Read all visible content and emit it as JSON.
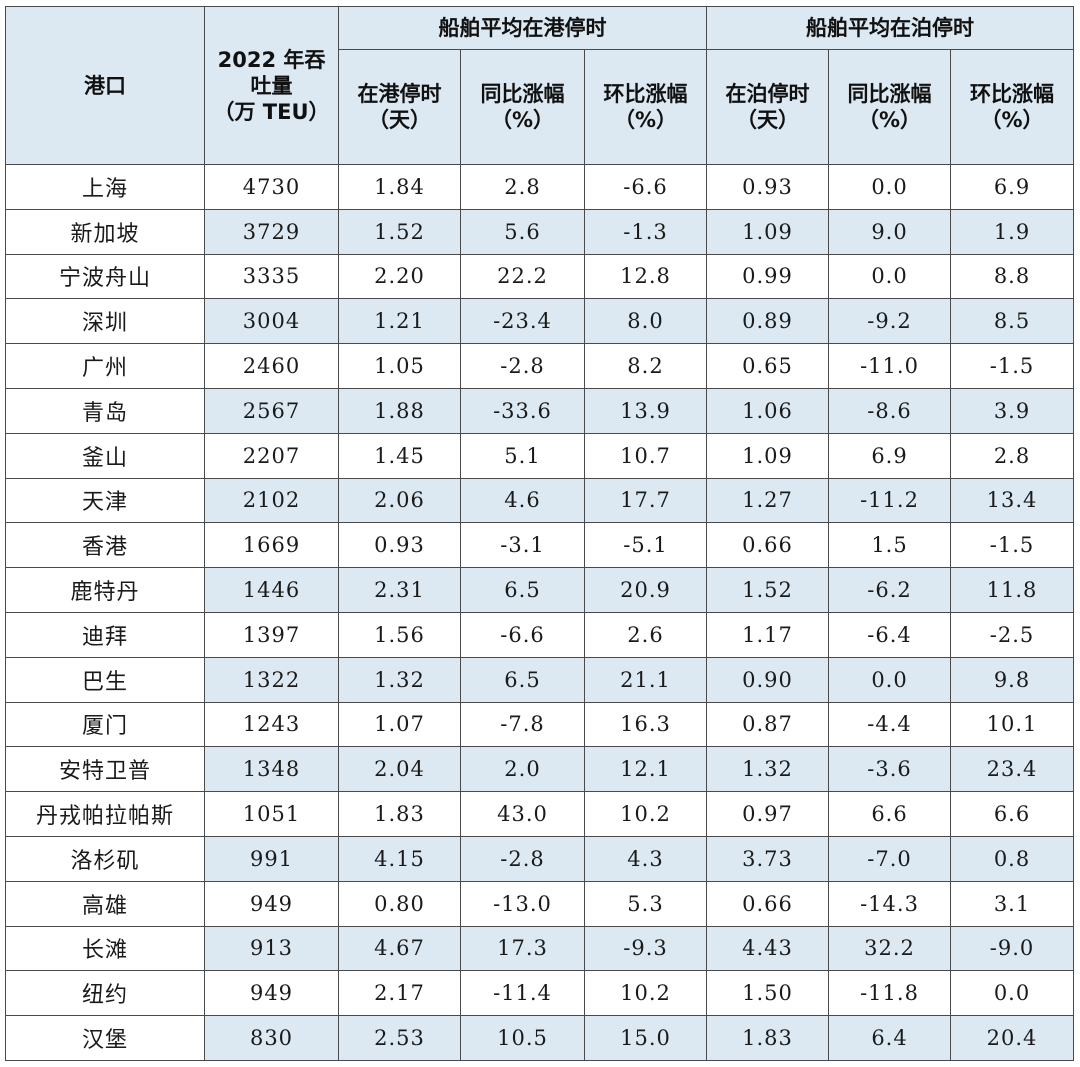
{
  "headers": {
    "port": "港口",
    "throughput": [
      "2022 年吞",
      "吐量",
      "（万 TEU）"
    ],
    "group_port": "船舶平均在港停时",
    "group_berth": "船舶平均在泊停时",
    "port_time": [
      "在港停时",
      "（天）"
    ],
    "yoy": [
      "同比涨幅",
      "（%）"
    ],
    "mom": [
      "环比涨幅",
      "（%）"
    ],
    "berth_time": [
      "在泊停时",
      "（天）"
    ]
  },
  "rows": [
    {
      "port": "上海",
      "teu": "4730",
      "port_days": "1.84",
      "port_yoy": "2.8",
      "port_mom": "-6.6",
      "berth_days": "0.93",
      "berth_yoy": "0.0",
      "berth_mom": "6.9"
    },
    {
      "port": "新加坡",
      "teu": "3729",
      "port_days": "1.52",
      "port_yoy": "5.6",
      "port_mom": "-1.3",
      "berth_days": "1.09",
      "berth_yoy": "9.0",
      "berth_mom": "1.9"
    },
    {
      "port": "宁波舟山",
      "teu": "3335",
      "port_days": "2.20",
      "port_yoy": "22.2",
      "port_mom": "12.8",
      "berth_days": "0.99",
      "berth_yoy": "0.0",
      "berth_mom": "8.8"
    },
    {
      "port": "深圳",
      "teu": "3004",
      "port_days": "1.21",
      "port_yoy": "-23.4",
      "port_mom": "8.0",
      "berth_days": "0.89",
      "berth_yoy": "-9.2",
      "berth_mom": "8.5"
    },
    {
      "port": "广州",
      "teu": "2460",
      "port_days": "1.05",
      "port_yoy": "-2.8",
      "port_mom": "8.2",
      "berth_days": "0.65",
      "berth_yoy": "-11.0",
      "berth_mom": "-1.5"
    },
    {
      "port": "青岛",
      "teu": "2567",
      "port_days": "1.88",
      "port_yoy": "-33.6",
      "port_mom": "13.9",
      "berth_days": "1.06",
      "berth_yoy": "-8.6",
      "berth_mom": "3.9"
    },
    {
      "port": "釜山",
      "teu": "2207",
      "port_days": "1.45",
      "port_yoy": "5.1",
      "port_mom": "10.7",
      "berth_days": "1.09",
      "berth_yoy": "6.9",
      "berth_mom": "2.8"
    },
    {
      "port": "天津",
      "teu": "2102",
      "port_days": "2.06",
      "port_yoy": "4.6",
      "port_mom": "17.7",
      "berth_days": "1.27",
      "berth_yoy": "-11.2",
      "berth_mom": "13.4"
    },
    {
      "port": "香港",
      "teu": "1669",
      "port_days": "0.93",
      "port_yoy": "-3.1",
      "port_mom": "-5.1",
      "berth_days": "0.66",
      "berth_yoy": "1.5",
      "berth_mom": "-1.5"
    },
    {
      "port": "鹿特丹",
      "teu": "1446",
      "port_days": "2.31",
      "port_yoy": "6.5",
      "port_mom": "20.9",
      "berth_days": "1.52",
      "berth_yoy": "-6.2",
      "berth_mom": "11.8"
    },
    {
      "port": "迪拜",
      "teu": "1397",
      "port_days": "1.56",
      "port_yoy": "-6.6",
      "port_mom": "2.6",
      "berth_days": "1.17",
      "berth_yoy": "-6.4",
      "berth_mom": "-2.5"
    },
    {
      "port": "巴生",
      "teu": "1322",
      "port_days": "1.32",
      "port_yoy": "6.5",
      "port_mom": "21.1",
      "berth_days": "0.90",
      "berth_yoy": "0.0",
      "berth_mom": "9.8"
    },
    {
      "port": "厦门",
      "teu": "1243",
      "port_days": "1.07",
      "port_yoy": "-7.8",
      "port_mom": "16.3",
      "berth_days": "0.87",
      "berth_yoy": "-4.4",
      "berth_mom": "10.1"
    },
    {
      "port": "安特卫普",
      "teu": "1348",
      "port_days": "2.04",
      "port_yoy": "2.0",
      "port_mom": "12.1",
      "berth_days": "1.32",
      "berth_yoy": "-3.6",
      "berth_mom": "23.4"
    },
    {
      "port": "丹戎帕拉帕斯",
      "teu": "1051",
      "port_days": "1.83",
      "port_yoy": "43.0",
      "port_mom": "10.2",
      "berth_days": "0.97",
      "berth_yoy": "6.6",
      "berth_mom": "6.6"
    },
    {
      "port": "洛杉矶",
      "teu": "991",
      "port_days": "4.15",
      "port_yoy": "-2.8",
      "port_mom": "4.3",
      "berth_days": "3.73",
      "berth_yoy": "-7.0",
      "berth_mom": "0.8"
    },
    {
      "port": "高雄",
      "teu": "949",
      "port_days": "0.80",
      "port_yoy": "-13.0",
      "port_mom": "5.3",
      "berth_days": "0.66",
      "berth_yoy": "-14.3",
      "berth_mom": "3.1"
    },
    {
      "port": "长滩",
      "teu": "913",
      "port_days": "4.67",
      "port_yoy": "17.3",
      "port_mom": "-9.3",
      "berth_days": "4.43",
      "berth_yoy": "32.2",
      "berth_mom": "-9.0"
    },
    {
      "port": "纽约",
      "teu": "949",
      "port_days": "2.17",
      "port_yoy": "-11.4",
      "port_mom": "10.2",
      "berth_days": "1.50",
      "berth_yoy": "-11.8",
      "berth_mom": "0.0"
    },
    {
      "port": "汉堡",
      "teu": "830",
      "port_days": "2.53",
      "port_yoy": "10.5",
      "port_mom": "15.0",
      "berth_days": "1.83",
      "berth_yoy": "6.4",
      "berth_mom": "20.4"
    }
  ]
}
